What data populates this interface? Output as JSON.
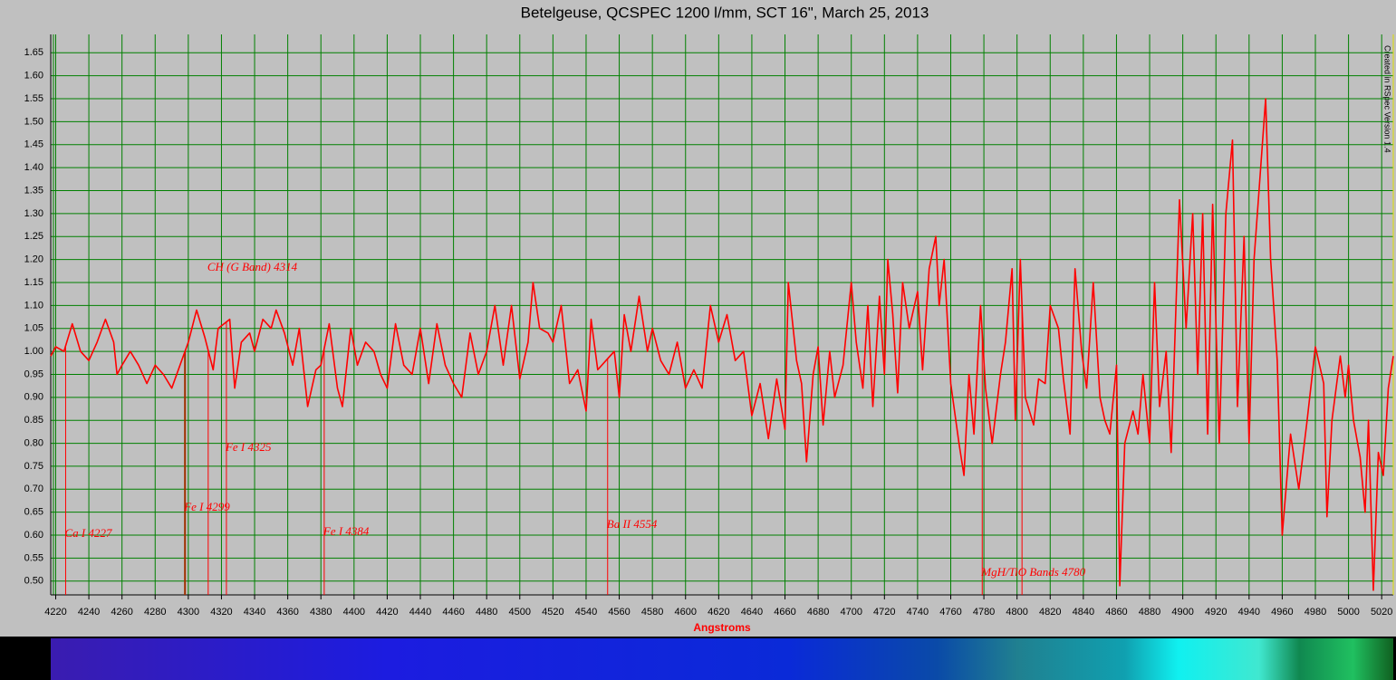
{
  "chart_data": {
    "type": "line",
    "title": "Betelgeuse, QCSPEC 1200 l/mm, SCT 16\", March 25, 2013",
    "x_label": "Angstroms",
    "credit": "Created in RSpec Version 1.4",
    "xlim": [
      4217,
      5027
    ],
    "ylim": [
      0.47,
      1.69
    ],
    "xticks": [
      4220,
      4240,
      4260,
      4280,
      4300,
      4320,
      4340,
      4360,
      4380,
      4400,
      4420,
      4440,
      4460,
      4480,
      4500,
      4520,
      4540,
      4560,
      4580,
      4600,
      4620,
      4640,
      4660,
      4680,
      4700,
      4720,
      4740,
      4760,
      4780,
      4800,
      4820,
      4840,
      4860,
      4880,
      4900,
      4920,
      4940,
      4960,
      4980,
      5000,
      5020
    ],
    "yticks": [
      {
        "value": 0.5,
        "label": "0.50"
      },
      0.55,
      {
        "value": 0.6,
        "label": "0.60"
      },
      0.65,
      {
        "value": 0.7,
        "label": "0.70"
      },
      0.75,
      {
        "value": 0.8,
        "label": "0.80"
      },
      0.85,
      {
        "value": 0.9,
        "label": "0.90"
      },
      0.95,
      {
        "value": 1.0,
        "label": "1.00"
      },
      1.05,
      {
        "value": 1.1,
        "label": "1.10"
      },
      1.15,
      {
        "value": 1.2,
        "label": "1.20"
      },
      1.25,
      {
        "value": 1.3,
        "label": "1.30"
      },
      1.35,
      {
        "value": 1.4,
        "label": "1.40"
      },
      1.45,
      {
        "value": 1.5,
        "label": "1.50"
      },
      1.55,
      {
        "value": 1.6,
        "label": "1.60"
      },
      1.65
    ],
    "grid": true,
    "grid_color": "#008000",
    "color": "#ff0000",
    "x": [
      4217,
      4220,
      4225,
      4230,
      4235,
      4240,
      4245,
      4250,
      4255,
      4257,
      4260,
      4265,
      4270,
      4275,
      4280,
      4285,
      4290,
      4295,
      4300,
      4305,
      4310,
      4315,
      4318,
      4325,
      4328,
      4332,
      4337,
      4340,
      4345,
      4350,
      4353,
      4358,
      4363,
      4367,
      4372,
      4377,
      4380,
      4385,
      4390,
      4393,
      4398,
      4402,
      4407,
      4412,
      4416,
      4420,
      4425,
      4430,
      4435,
      4440,
      4445,
      4450,
      4455,
      4460,
      4465,
      4470,
      4475,
      4480,
      4485,
      4490,
      4495,
      4500,
      4505,
      4508,
      4512,
      4517,
      4520,
      4525,
      4530,
      4535,
      4540,
      4543,
      4547,
      4552,
      4557,
      4560,
      4563,
      4567,
      4572,
      4577,
      4580,
      4585,
      4590,
      4595,
      4600,
      4605,
      4610,
      4615,
      4620,
      4625,
      4630,
      4635,
      4640,
      4645,
      4650,
      4655,
      4660,
      4662,
      4667,
      4670,
      4673,
      4677,
      4680,
      4683,
      4687,
      4690,
      4695,
      4700,
      4703,
      4707,
      4710,
      4713,
      4717,
      4720,
      4722,
      4725,
      4728,
      4731,
      4735,
      4740,
      4743,
      4747,
      4751,
      4753,
      4756,
      4760,
      4765,
      4768,
      4771,
      4774,
      4778,
      4781,
      4785,
      4790,
      4793,
      4797,
      4799,
      4802,
      4805,
      4810,
      4813,
      4817,
      4820,
      4825,
      4828,
      4832,
      4835,
      4839,
      4842,
      4846,
      4850,
      4853,
      4856,
      4860,
      4862,
      4865,
      4870,
      4873,
      4876,
      4880,
      4883,
      4886,
      4890,
      4893,
      4898,
      4902,
      4906,
      4909,
      4912,
      4915,
      4918,
      4922,
      4926,
      4930,
      4933,
      4937,
      4940,
      4943,
      4946,
      4950,
      4953,
      4957,
      4960,
      4965,
      4970,
      4975,
      4980,
      4985,
      4987,
      4990,
      4995,
      4998,
      5000,
      5003,
      5007,
      5010,
      5012,
      5015,
      5018,
      5021,
      5024,
      5027
    ],
    "values": [
      0.99,
      1.01,
      1.0,
      1.06,
      1.0,
      0.98,
      1.02,
      1.07,
      1.02,
      0.95,
      0.97,
      1.0,
      0.97,
      0.93,
      0.97,
      0.95,
      0.92,
      0.97,
      1.02,
      1.09,
      1.03,
      0.96,
      1.05,
      1.07,
      0.92,
      1.02,
      1.04,
      1.0,
      1.07,
      1.05,
      1.09,
      1.04,
      0.97,
      1.05,
      0.88,
      0.96,
      0.97,
      1.06,
      0.92,
      0.88,
      1.05,
      0.97,
      1.02,
      1.0,
      0.95,
      0.92,
      1.06,
      0.97,
      0.95,
      1.05,
      0.93,
      1.06,
      0.97,
      0.93,
      0.9,
      1.04,
      0.95,
      1.0,
      1.1,
      0.97,
      1.1,
      0.94,
      1.02,
      1.15,
      1.05,
      1.04,
      1.02,
      1.1,
      0.93,
      0.96,
      0.87,
      1.07,
      0.96,
      0.98,
      1.0,
      0.9,
      1.08,
      1.0,
      1.12,
      1.0,
      1.05,
      0.98,
      0.95,
      1.02,
      0.92,
      0.96,
      0.92,
      1.1,
      1.02,
      1.08,
      0.98,
      1.0,
      0.86,
      0.93,
      0.81,
      0.94,
      0.83,
      1.15,
      0.98,
      0.93,
      0.76,
      0.95,
      1.01,
      0.84,
      1.0,
      0.9,
      0.97,
      1.15,
      1.02,
      0.92,
      1.1,
      0.88,
      1.12,
      0.95,
      1.2,
      1.08,
      0.91,
      1.15,
      1.05,
      1.13,
      0.96,
      1.18,
      1.25,
      1.1,
      1.2,
      0.93,
      0.8,
      0.73,
      0.95,
      0.82,
      1.1,
      0.92,
      0.8,
      0.95,
      1.02,
      1.18,
      0.85,
      1.2,
      0.9,
      0.84,
      0.94,
      0.93,
      1.1,
      1.05,
      0.94,
      0.82,
      1.18,
      1.0,
      0.92,
      1.15,
      0.9,
      0.85,
      0.82,
      0.97,
      0.49,
      0.8,
      0.87,
      0.82,
      0.95,
      0.8,
      1.15,
      0.88,
      1.0,
      0.78,
      1.33,
      1.05,
      1.3,
      0.95,
      1.3,
      0.82,
      1.32,
      0.8,
      1.3,
      1.46,
      0.88,
      1.25,
      0.8,
      1.2,
      1.35,
      1.55,
      1.2,
      0.98,
      0.6,
      0.82,
      0.7,
      0.85,
      1.01,
      0.93,
      0.64,
      0.85,
      0.99,
      0.9,
      0.97,
      0.85,
      0.77,
      0.65,
      0.85,
      0.48,
      0.78,
      0.73,
      0.92,
      0.99
    ],
    "annotations": [
      {
        "text": "Ca I 4227",
        "x": 4226
      },
      {
        "text": "Fe I 4299",
        "x": 4298
      },
      {
        "text": "CH (G Band) 4314",
        "x": 4312
      },
      {
        "text": "Fe I 4325",
        "x": 4323
      },
      {
        "text": "Fe I 4384",
        "x": 4382
      },
      {
        "text": "Ba II 4554",
        "x": 4553
      },
      {
        "text": "MgH/TiO Bands 4780",
        "x": 4779
      },
      {
        "x": 4803
      }
    ]
  }
}
